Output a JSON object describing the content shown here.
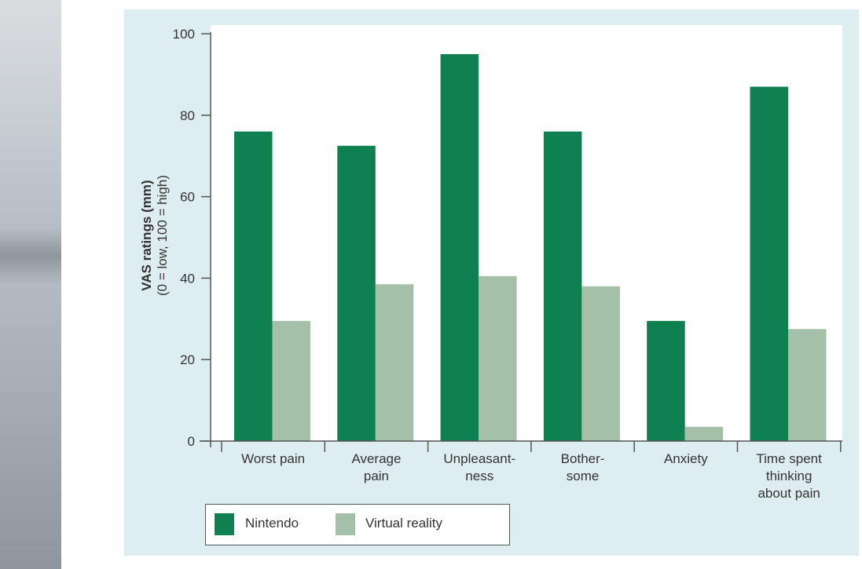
{
  "chart_data": {
    "type": "bar",
    "title": "",
    "ylabel": "VAS ratings (mm)",
    "ylabel_sub": "(0 = low, 100 = high)",
    "xlabel": "",
    "ylim": [
      0,
      100
    ],
    "yticks": [
      0,
      20,
      40,
      60,
      80,
      100
    ],
    "categories": [
      [
        "Worst pain"
      ],
      [
        "Average",
        "pain"
      ],
      [
        "Unpleasant-",
        "ness"
      ],
      [
        "Bother-",
        "some"
      ],
      [
        "Anxiety"
      ],
      [
        "Time spent",
        "thinking",
        "about pain"
      ]
    ],
    "series": [
      {
        "name": "Nintendo",
        "color": "#0f8050",
        "values": [
          76,
          72.5,
          95,
          76,
          29.5,
          87
        ]
      },
      {
        "name": "Virtual reality",
        "color": "#a4c0a9",
        "values": [
          29.5,
          38.5,
          40.5,
          38,
          3.5,
          27.5
        ]
      }
    ],
    "legend_position": "bottom-left",
    "grid": false
  }
}
